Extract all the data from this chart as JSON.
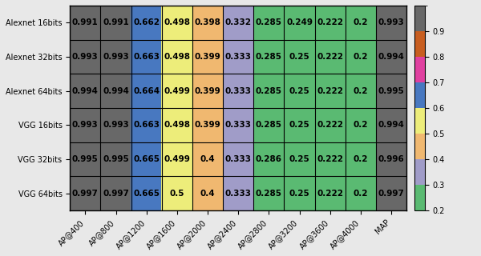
{
  "row_labels": [
    "Alexnet 16bits",
    "Alexnet 32bits",
    "Alexnet 64bits",
    "VGG 16bits",
    "VGG 32bits",
    "VGG 64bits"
  ],
  "col_labels": [
    "AP@400",
    "AP@800",
    "AP@1200",
    "AP@1600",
    "AP@2000",
    "AP@2400",
    "AP@2800",
    "AP@3200",
    "AP@3600",
    "AP@4000",
    "MAP"
  ],
  "values": [
    [
      0.991,
      0.991,
      0.662,
      0.498,
      0.398,
      0.332,
      0.285,
      0.249,
      0.222,
      0.2,
      0.993
    ],
    [
      0.993,
      0.993,
      0.663,
      0.498,
      0.399,
      0.333,
      0.285,
      0.25,
      0.222,
      0.2,
      0.994
    ],
    [
      0.994,
      0.994,
      0.664,
      0.499,
      0.399,
      0.333,
      0.285,
      0.25,
      0.222,
      0.2,
      0.995
    ],
    [
      0.993,
      0.993,
      0.663,
      0.498,
      0.399,
      0.333,
      0.285,
      0.25,
      0.222,
      0.2,
      0.994
    ],
    [
      0.995,
      0.995,
      0.665,
      0.499,
      0.4,
      0.333,
      0.286,
      0.25,
      0.222,
      0.2,
      0.996
    ],
    [
      0.997,
      0.997,
      0.665,
      0.5,
      0.4,
      0.333,
      0.285,
      0.25,
      0.222,
      0.2,
      0.997
    ]
  ],
  "colormap_colors": [
    "#5aba72",
    "#7fba7a",
    "#9abf82",
    "#a8a0c8",
    "#f5c97a",
    "#f5c97a",
    "#4b80c8",
    "#e040a0",
    "#c85e20",
    "#686868"
  ],
  "colormap_bounds": [
    0.19,
    0.27,
    0.34,
    0.395,
    0.405,
    0.496,
    0.66,
    0.72,
    0.82,
    0.92,
    1.01
  ],
  "text_color": "black",
  "fontsize_cell": 7.5,
  "fontsize_tick": 7,
  "fontsize_ylabel": 7,
  "background_color": "#e8e8e8",
  "colorbar_ticks": [
    0.2,
    0.3,
    0.4,
    0.5,
    0.6,
    0.7,
    0.8,
    0.9
  ]
}
